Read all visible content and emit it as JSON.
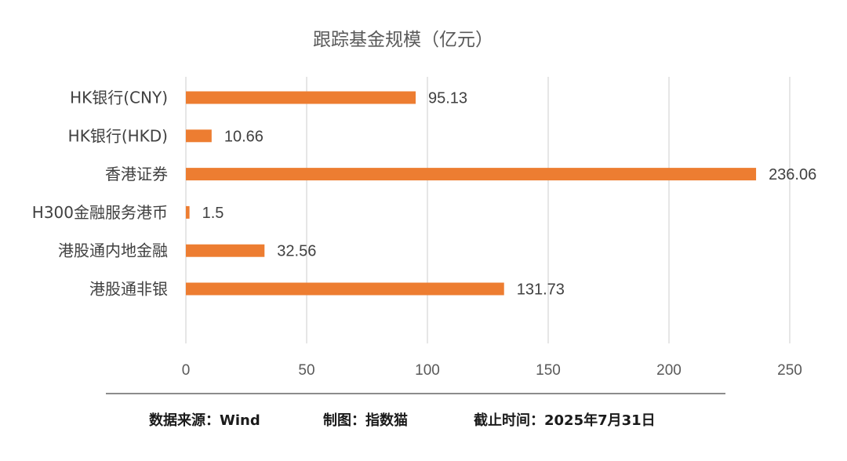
{
  "chart_data": {
    "type": "bar",
    "orientation": "horizontal",
    "title": "跟踪基金规模（亿元）",
    "categories": [
      "HK银行(CNY)",
      "HK银行(HKD)",
      "香港证券",
      "H300金融服务港币",
      "港股通内地金融",
      "港股通非银"
    ],
    "values": [
      95.13,
      10.66,
      236.06,
      1.5,
      32.56,
      131.73
    ],
    "data_labels": [
      "95.13",
      "10.66",
      "236.06",
      "1.5",
      "32.56",
      "131.73"
    ],
    "xlim": [
      0,
      250
    ],
    "x_ticks": [
      "0",
      "50",
      "100",
      "150",
      "200",
      "250"
    ],
    "grid": true,
    "legend": "none",
    "bar_color": "#ED7D31",
    "grid_color": "#d9d9d9"
  },
  "footer": {
    "source": "数据来源：Wind",
    "maker": "制图：指数猫",
    "cutoff": "截止时间：2025年7月31日"
  }
}
